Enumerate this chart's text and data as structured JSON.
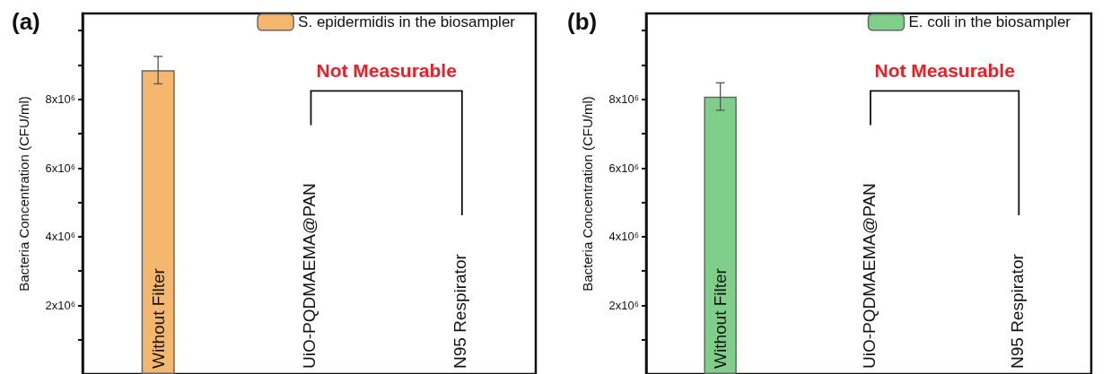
{
  "chart_data": [
    {
      "type": "bar",
      "title": "(a)",
      "ylabel": "Bacteria Concentration (CFU/ml)",
      "categories": [
        "Without Filter",
        "UiO-PQDMAEMA@PAN",
        "N95 Respirator"
      ],
      "series": [
        {
          "name": "S. epidermidis in the biosampler",
          "color": "#f5b76e",
          "values": [
            8850000,
            null,
            null
          ],
          "errors": [
            400000,
            null,
            null
          ]
        }
      ],
      "ylim": [
        0,
        10500000
      ],
      "yticks": [
        {
          "value": 1000000,
          "label": null
        },
        {
          "value": 2000000,
          "label": "2x10⁶"
        },
        {
          "value": 3000000,
          "label": null
        },
        {
          "value": 4000000,
          "label": "4x10⁶"
        },
        {
          "value": 5000000,
          "label": null
        },
        {
          "value": 6000000,
          "label": "6x10⁶"
        },
        {
          "value": 7000000,
          "label": null
        },
        {
          "value": 8000000,
          "label": "8x10⁶"
        },
        {
          "value": 9000000,
          "label": null
        },
        {
          "value": 10000000,
          "label": null
        }
      ],
      "annotations": [
        "Not Measurable"
      ],
      "legend": "top right",
      "grid": false
    },
    {
      "type": "bar",
      "title": "(b)",
      "ylabel": "Bacteria Concentration (CFU/ml)",
      "categories": [
        "Without Filter",
        "UiO-PQDMAEMA@PAN",
        "N95 Respirator"
      ],
      "series": [
        {
          "name": "E. coli in the biosampler",
          "color": "#7fce8a",
          "values": [
            8080000,
            null,
            null
          ],
          "errors": [
            400000,
            null,
            null
          ]
        }
      ],
      "ylim": [
        0,
        10500000
      ],
      "yticks": [
        {
          "value": 1000000,
          "label": null
        },
        {
          "value": 2000000,
          "label": "2x10⁶"
        },
        {
          "value": 3000000,
          "label": null
        },
        {
          "value": 4000000,
          "label": "4x10⁶"
        },
        {
          "value": 5000000,
          "label": null
        },
        {
          "value": 6000000,
          "label": "6x10⁶"
        },
        {
          "value": 7000000,
          "label": null
        },
        {
          "value": 8000000,
          "label": "8x10⁶"
        },
        {
          "value": 9000000,
          "label": null
        },
        {
          "value": 10000000,
          "label": null
        }
      ],
      "annotations": [
        "Not Measurable"
      ],
      "legend": "top right",
      "grid": false
    }
  ]
}
